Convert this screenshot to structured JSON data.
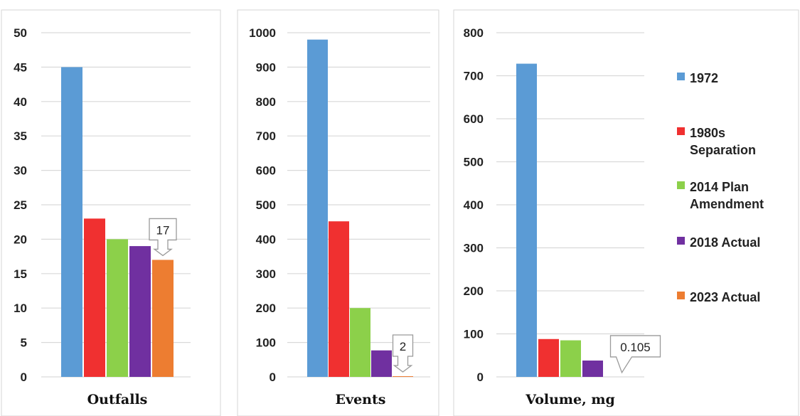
{
  "chart_data": [
    {
      "type": "bar",
      "xlabel": "Outfalls",
      "ylim": [
        0,
        50
      ],
      "yticks": [
        0,
        5,
        10,
        15,
        20,
        25,
        30,
        35,
        40,
        45,
        50
      ],
      "grid": true,
      "series": [
        {
          "name": "1972",
          "values": [
            45
          ]
        },
        {
          "name": "1980s Separation",
          "values": [
            23
          ]
        },
        {
          "name": "2014 Plan Amendment",
          "values": [
            20
          ]
        },
        {
          "name": "2018 Actual",
          "values": [
            19
          ]
        },
        {
          "name": "2023 Actual",
          "values": [
            17
          ]
        }
      ],
      "annotation": {
        "text": "17",
        "series": "2023 Actual",
        "value": 17
      }
    },
    {
      "type": "bar",
      "xlabel": "Events",
      "ylim": [
        0,
        1000
      ],
      "yticks": [
        0,
        100,
        200,
        300,
        400,
        500,
        600,
        700,
        800,
        900,
        1000
      ],
      "grid": true,
      "series": [
        {
          "name": "1972",
          "values": [
            980
          ]
        },
        {
          "name": "1980s Separation",
          "values": [
            452
          ]
        },
        {
          "name": "2014 Plan Amendment",
          "values": [
            200
          ]
        },
        {
          "name": "2018 Actual",
          "values": [
            77
          ]
        },
        {
          "name": "2023 Actual",
          "values": [
            2
          ]
        }
      ],
      "annotation": {
        "text": "2",
        "series": "2023 Actual",
        "value": 2
      }
    },
    {
      "type": "bar",
      "xlabel": "Volume, mg",
      "ylim": [
        0,
        800
      ],
      "yticks": [
        0,
        100,
        200,
        300,
        400,
        500,
        600,
        700,
        800
      ],
      "grid": true,
      "series": [
        {
          "name": "1972",
          "values": [
            728
          ]
        },
        {
          "name": "1980s Separation",
          "values": [
            88
          ]
        },
        {
          "name": "2014 Plan Amendment",
          "values": [
            85
          ]
        },
        {
          "name": "2018 Actual",
          "values": [
            38
          ]
        },
        {
          "name": "2023 Actual",
          "values": [
            0.105
          ]
        }
      ],
      "annotation": {
        "text": "0.105",
        "series": "2023 Actual",
        "value": 0.105
      }
    }
  ],
  "legend": {
    "placement": "right",
    "items": [
      {
        "lines": [
          "1972"
        ],
        "color": "#5b9bd5"
      },
      {
        "lines": [
          "1980s",
          "Separation"
        ],
        "color": "#f03030"
      },
      {
        "lines": [
          "2014 Plan",
          "Amendment"
        ],
        "color": "#8cd04a"
      },
      {
        "lines": [
          "2018 Actual"
        ],
        "color": "#7030a0"
      },
      {
        "lines": [
          "2023 Actual"
        ],
        "color": "#ed7d31"
      }
    ]
  },
  "colors": [
    "#5b9bd5",
    "#f03030",
    "#8cd04a",
    "#7030a0",
    "#ed7d31"
  ]
}
